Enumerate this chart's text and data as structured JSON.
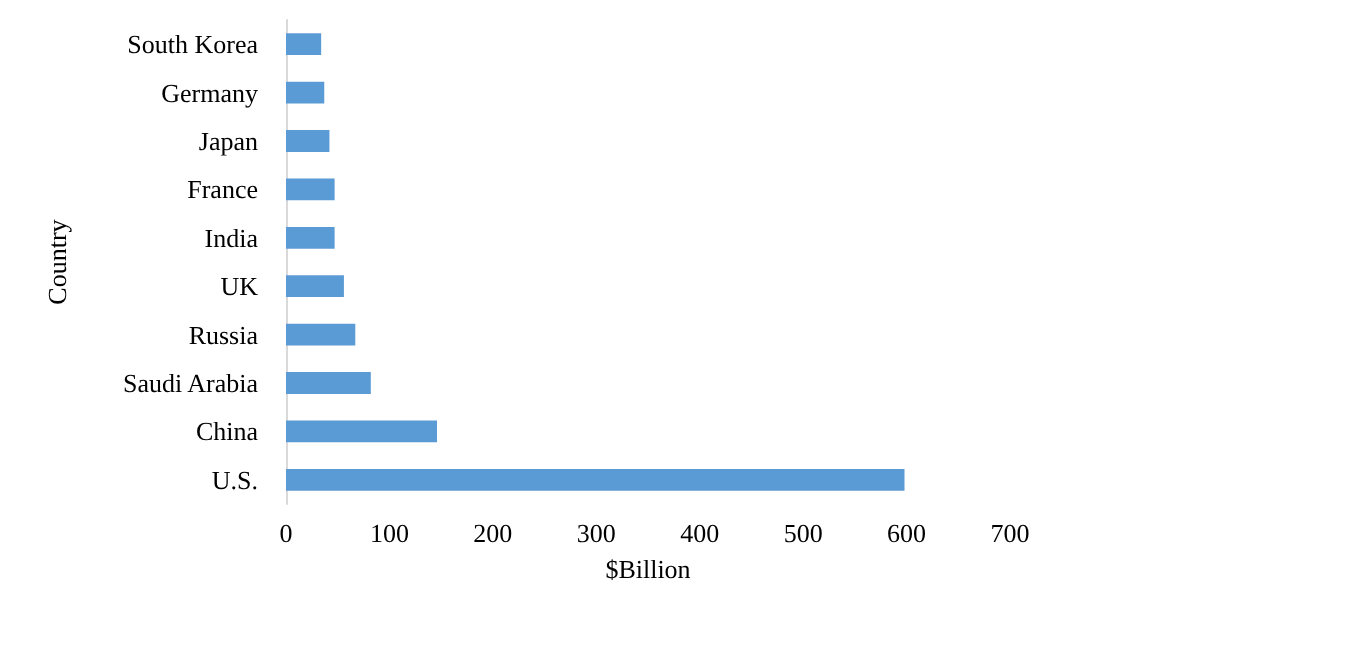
{
  "chart_data": {
    "type": "bar",
    "orientation": "horizontal",
    "xlabel": "$Billion",
    "ylabel": "Country",
    "categories": [
      "South Korea",
      "Germany",
      "Japan",
      "France",
      "India",
      "UK",
      "Russia",
      "Saudi Arabia",
      "China",
      "U.S."
    ],
    "values": [
      34,
      37,
      42,
      47,
      47,
      56,
      67,
      82,
      146,
      598
    ],
    "color": "#5b9bd5",
    "xlim": [
      0,
      700
    ],
    "xticks": [
      0,
      100,
      200,
      300,
      400,
      500,
      600,
      700
    ],
    "grid": false
  }
}
